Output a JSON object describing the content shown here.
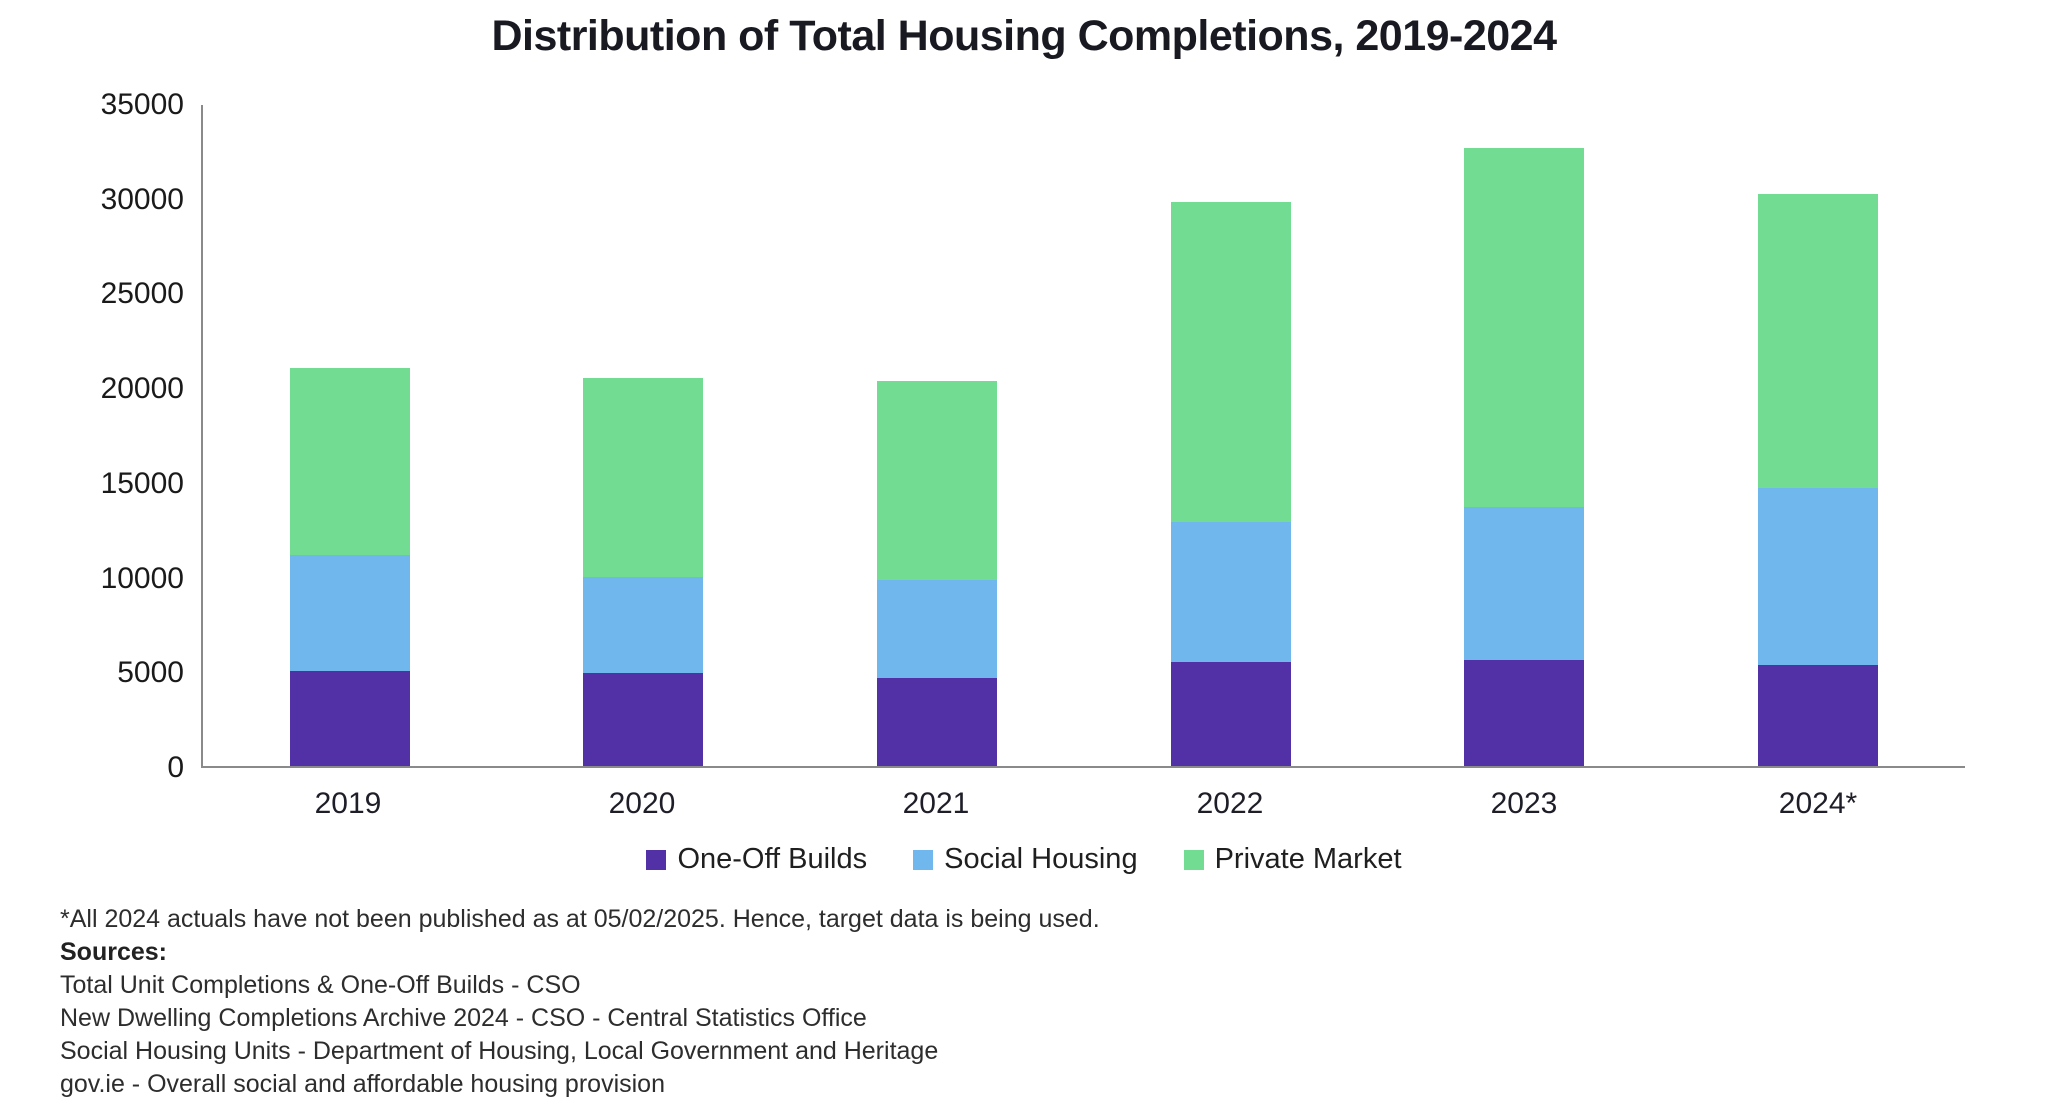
{
  "chart": {
    "title": "Distribution of Total Housing Completions, 2019-2024"
  },
  "chart_data": {
    "type": "bar",
    "stacked": true,
    "title": "Distribution of Total Housing Completions, 2019-2024",
    "categories": [
      "2019",
      "2020",
      "2021",
      "2022",
      "2023",
      "2024*"
    ],
    "series": [
      {
        "name": "One-Off Builds",
        "color": "#5230A5",
        "values": [
          5050,
          4900,
          4650,
          5500,
          5600,
          5350
        ]
      },
      {
        "name": "Social Housing",
        "color": "#70B7ED",
        "values": [
          6100,
          5100,
          5200,
          7400,
          8100,
          9350
        ]
      },
      {
        "name": "Private Market",
        "color": "#73DC93",
        "values": [
          9950,
          10550,
          10550,
          16950,
          19000,
          15600
        ]
      }
    ],
    "totals": [
      21100,
      20550,
      20400,
      29850,
      32700,
      30300
    ],
    "xlabel": "",
    "ylabel": "",
    "ylim": [
      0,
      35000
    ],
    "yticks": [
      0,
      5000,
      10000,
      15000,
      20000,
      25000,
      30000,
      35000
    ],
    "grid": false,
    "legend_position": "bottom",
    "axis_color": "#8a8a8a",
    "text_color": "#1f1f1f"
  },
  "footnotes": {
    "note": "*All 2024 actuals have not been published as at 05/02/2025. Hence, target data is being used.",
    "sources_label": "Sources:",
    "sources": [
      "Total Unit Completions & One-Off Builds - CSO",
      "New Dwelling Completions Archive 2024 - CSO - Central Statistics Office",
      "Social Housing Units - Department of Housing, Local Government and Heritage",
      "gov.ie - Overall social and affordable housing provision"
    ]
  }
}
